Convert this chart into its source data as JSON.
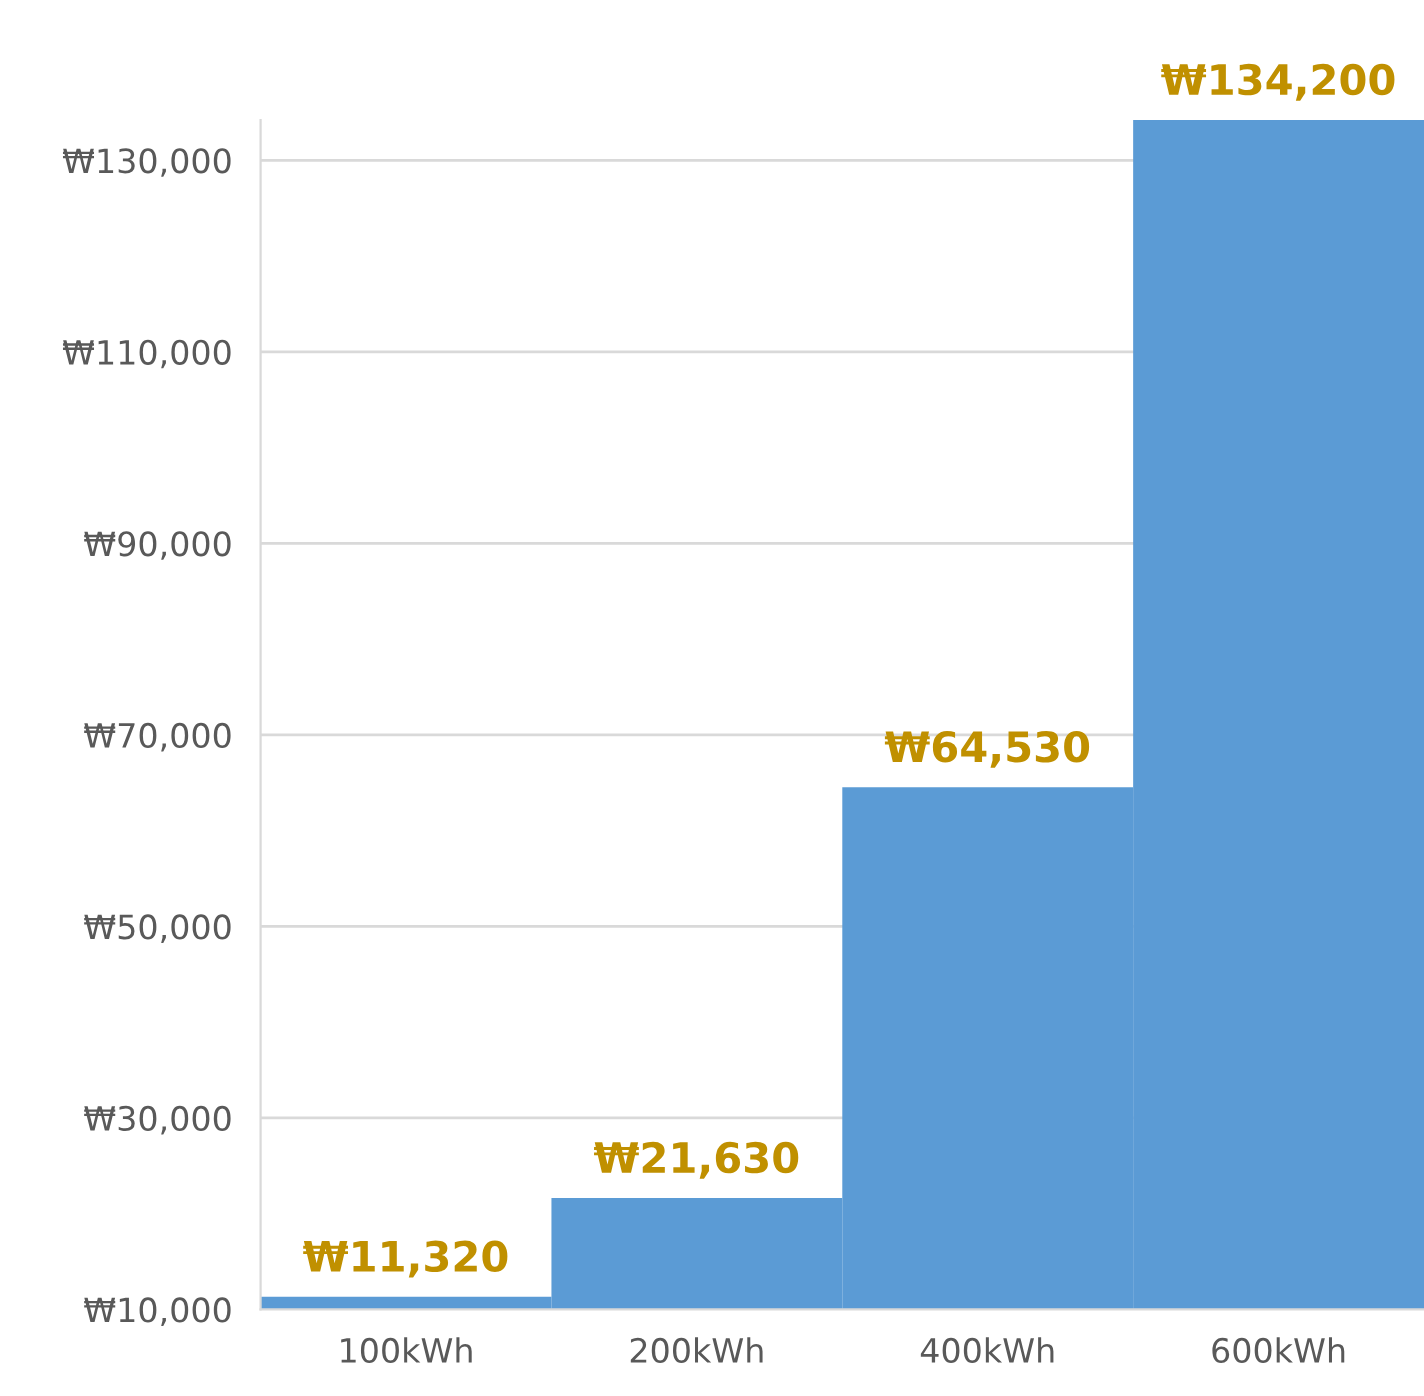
{
  "chart_data": {
    "type": "bar",
    "categories": [
      "100kWh",
      "200kWh",
      "400kWh",
      "600kWh"
    ],
    "values": [
      11320,
      21630,
      64530,
      134200
    ],
    "value_labels": [
      "₩11,320",
      "₩21,630",
      "₩64,530",
      "₩134,200"
    ],
    "color": "#5b9bd5",
    "ylim": [
      10000,
      134200
    ],
    "yticks": [
      {
        "value": 10000,
        "label": "₩10,000"
      },
      {
        "value": 30000,
        "label": "₩30,000"
      },
      {
        "value": 50000,
        "label": "₩50,000"
      },
      {
        "value": 70000,
        "label": "₩70,000"
      },
      {
        "value": 90000,
        "label": "₩90,000"
      },
      {
        "value": 110000,
        "label": "₩110,000"
      },
      {
        "value": 130000,
        "label": "₩130,000"
      }
    ],
    "grid": "y"
  }
}
